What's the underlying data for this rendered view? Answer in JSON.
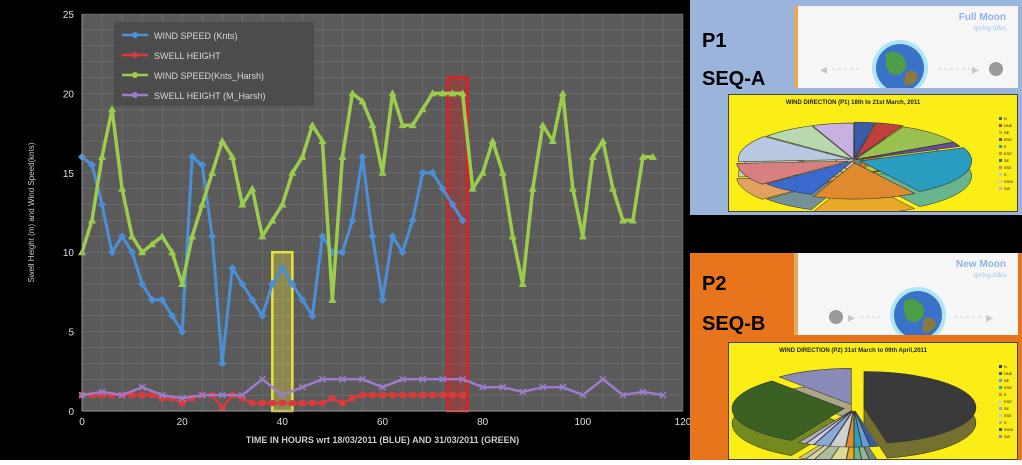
{
  "chart_data": [
    {
      "type": "line",
      "title": "",
      "xlabel": "TIME IN HOURS wrt 18/03/2011 (BLUE) AND 31/03/2011 (GREEN)",
      "ylabel": "Swell Height (m) and Wind Speed(knts)",
      "xlim": [
        0,
        120
      ],
      "ylim": [
        0,
        25
      ],
      "x_ticks": [
        0,
        20,
        40,
        60,
        80,
        100,
        120
      ],
      "y_ticks": [
        0,
        5,
        10,
        15,
        20,
        25
      ],
      "grid": true,
      "legend_position": "top-left",
      "series": [
        {
          "name": "WIND SPEED (Knts)",
          "color": "#4a8fd8",
          "marker": "diamond",
          "x": [
            0,
            2,
            4,
            6,
            8,
            10,
            12,
            14,
            16,
            18,
            20,
            22,
            24,
            26,
            28,
            30,
            32,
            34,
            36,
            38,
            40,
            42,
            44,
            46,
            48,
            50,
            52,
            54,
            56,
            58,
            60,
            62,
            64,
            66,
            68,
            70,
            72,
            74,
            76,
            78
          ],
          "y": [
            16,
            15.5,
            13,
            10,
            11,
            10,
            8,
            7,
            7,
            6,
            5,
            16,
            15.5,
            11,
            3,
            9,
            8,
            7,
            6,
            8,
            9,
            8,
            7,
            6,
            11,
            10,
            10,
            12,
            16,
            11,
            7,
            11,
            10,
            12,
            15,
            15,
            14,
            13,
            12,
            null
          ]
        },
        {
          "name": "SWELL HEIGHT",
          "color": "#d83c3c",
          "marker": "square",
          "x": [
            0,
            2,
            4,
            6,
            8,
            10,
            12,
            14,
            16,
            18,
            20,
            22,
            24,
            26,
            28,
            30,
            32,
            34,
            36,
            38,
            40,
            42,
            44,
            46,
            48,
            50,
            52,
            54,
            56,
            58,
            60,
            62,
            64,
            66,
            68,
            70,
            72,
            74,
            76
          ],
          "y": [
            1,
            1,
            1,
            1,
            1,
            1,
            1,
            1,
            0.8,
            0.8,
            0.5,
            0.8,
            1,
            1,
            0.2,
            1,
            0.8,
            0.5,
            0.5,
            0.5,
            0.5,
            0.5,
            0.5,
            0.5,
            0.5,
            0.8,
            0.5,
            0.8,
            1,
            1,
            1,
            1,
            1,
            1,
            1,
            1,
            1,
            1,
            1
          ]
        },
        {
          "name": "WIND SPEED(Knts_Harsh)",
          "color": "#9ccc4c",
          "marker": "triangle",
          "x": [
            0,
            2,
            4,
            6,
            8,
            10,
            12,
            14,
            16,
            18,
            20,
            22,
            24,
            26,
            28,
            30,
            32,
            34,
            36,
            38,
            40,
            42,
            44,
            46,
            48,
            50,
            52,
            54,
            56,
            58,
            60,
            62,
            64,
            66,
            68,
            70,
            72,
            74,
            76,
            78,
            80,
            82,
            84,
            86,
            88,
            90,
            92,
            94,
            96,
            98,
            100,
            102,
            104,
            106,
            108,
            110,
            112,
            114
          ],
          "y": [
            10,
            12,
            16,
            19,
            14,
            11,
            10,
            10.5,
            11,
            10,
            8,
            11,
            13,
            15,
            17,
            16,
            13,
            14,
            11,
            12,
            13,
            15,
            16,
            18,
            17,
            7,
            16,
            20,
            19.5,
            18,
            15,
            20,
            18,
            18,
            19,
            20,
            20,
            20,
            20,
            14,
            15,
            17,
            15,
            11,
            8,
            14,
            18,
            17,
            20,
            14,
            11,
            16,
            17,
            14,
            12,
            12,
            16,
            16
          ]
        },
        {
          "name": "SWELL HEIGHT (M_Harsh)",
          "color": "#9c7cc8",
          "marker": "x",
          "x": [
            0,
            4,
            8,
            12,
            16,
            20,
            24,
            28,
            32,
            36,
            40,
            44,
            48,
            52,
            56,
            60,
            64,
            68,
            72,
            76,
            80,
            84,
            88,
            92,
            96,
            100,
            104,
            108,
            112,
            116
          ],
          "y": [
            1,
            1.2,
            1,
            1.5,
            1,
            0.8,
            1,
            1,
            1,
            2,
            1,
            1.5,
            2,
            2,
            2,
            1.5,
            2,
            2,
            2,
            2,
            1.5,
            1.5,
            1.2,
            1.5,
            1.5,
            1,
            2,
            1,
            1.2,
            1
          ]
        }
      ]
    },
    {
      "type": "pie",
      "title": "WIND DIRECTION (P1) 18th to 21st March, 2011",
      "categories": [
        "N",
        "NNE",
        "NE",
        "ENE",
        "E",
        "ESE",
        "SE",
        "SSE",
        "S",
        "SSW",
        "SW"
      ],
      "values": [
        3,
        4,
        10,
        2,
        22,
        15,
        8,
        10,
        12,
        8,
        6
      ],
      "colors": [
        "#3a5ca8",
        "#c04040",
        "#9ac050",
        "#6a4c9c",
        "#2a9cc0",
        "#e08a30",
        "#3a6ad0",
        "#d88080",
        "#b8c8e0",
        "#b8d8b0",
        "#c8b0e0"
      ]
    },
    {
      "type": "pie",
      "title": "WIND DIRECTION (P2) 31st March to 09th April,2011",
      "categories": [
        "N",
        "NNE",
        "NE",
        "ENE",
        "E",
        "ESE",
        "SE",
        "SSE",
        "S",
        "SSW",
        "SW"
      ],
      "values": [
        42,
        1,
        1,
        1,
        1,
        2,
        2,
        1,
        1,
        28,
        10
      ],
      "colors": [
        "#3a3a3a",
        "#3a5ca8",
        "#6a9cd0",
        "#2aa0c0",
        "#e08a30",
        "#d0d0d0",
        "#8aa8d8",
        "#c8c8e8",
        "#b0b0b0",
        "#3a6024",
        "#8a8ab8"
      ]
    }
  ],
  "panels": {
    "p1": {
      "label": "P1",
      "seq": "SEQ-A",
      "moon_title": "Full Moon",
      "moon_sub": "spring tides"
    },
    "p2": {
      "label": "P2",
      "seq": "SEQ-B",
      "moon_title": "New Moon",
      "moon_sub": "spring tides"
    }
  },
  "highlights": [
    {
      "x_from": 38,
      "x_to": 42,
      "color": "#e8e23c"
    },
    {
      "x_from": 73,
      "x_to": 77,
      "color": "#e02020"
    }
  ]
}
